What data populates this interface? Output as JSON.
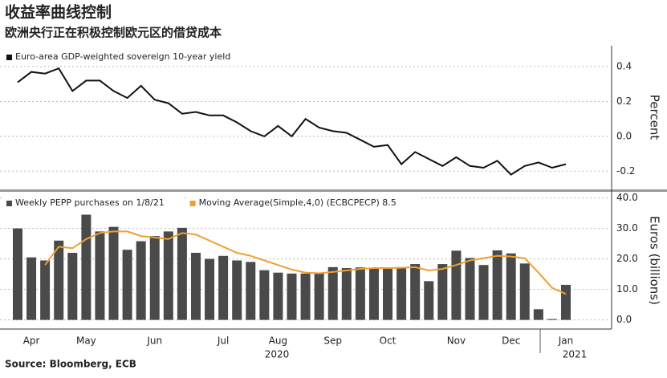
{
  "chart_data": [
    {
      "type": "line",
      "title": "收益率曲线控制",
      "subtitle": "欧洲央行正在积极控制欧元区的借贷成本",
      "ylabel": "Percent",
      "series": [
        {
          "name": "Euro-area GDP-weighted sovereign 10-year yield",
          "color": "#111111",
          "values": [
            0.31,
            0.37,
            0.36,
            0.39,
            0.26,
            0.32,
            0.32,
            0.26,
            0.22,
            0.29,
            0.21,
            0.19,
            0.13,
            0.14,
            0.12,
            0.12,
            0.08,
            0.03,
            0.0,
            0.06,
            0.0,
            0.1,
            0.05,
            0.03,
            0.02,
            -0.02,
            -0.06,
            -0.05,
            -0.16,
            -0.09,
            -0.13,
            -0.17,
            -0.12,
            -0.17,
            -0.18,
            -0.14,
            -0.22,
            -0.17,
            -0.15,
            -0.18,
            -0.16
          ]
        }
      ],
      "ylim": [
        -0.3,
        0.52
      ],
      "yticks": [
        -0.2,
        {
          "value": 0,
          "label": "0.0"
        },
        0.2,
        0.4
      ]
    },
    {
      "type": "bar",
      "ylabel": "Euros (billions)",
      "source": "Source: Bloomberg, ECB",
      "categories": [
        null,
        "Apr",
        null,
        null,
        null,
        "May",
        null,
        null,
        null,
        null,
        "Jun",
        null,
        null,
        null,
        null,
        "Jul",
        null,
        null,
        null,
        "Aug",
        null,
        null,
        null,
        "Sep",
        null,
        null,
        null,
        "Oct",
        null,
        null,
        null,
        null,
        "Nov",
        null,
        null,
        null,
        "Dec",
        null,
        null,
        null,
        "Jan"
      ],
      "years": [
        "2020",
        "2021"
      ],
      "series": [
        {
          "name": "Weekly PEPP purchases on 1/8/21",
          "color": "#4a4a4a",
          "values": [
            30,
            20.5,
            19.5,
            26,
            22,
            34.5,
            29,
            30.5,
            23,
            25.8,
            27.5,
            29,
            30.2,
            22,
            20,
            21,
            19.5,
            19,
            16.3,
            15.5,
            15.2,
            15.2,
            15.5,
            17.3,
            17,
            17.2,
            17,
            16.8,
            17.3,
            18.3,
            12.7,
            18.3,
            22.7,
            20.3,
            18,
            22.8,
            21.8,
            18.5,
            3.5,
            0.3,
            11.5
          ]
        },
        {
          "name": "Moving Average(Simple,4,0) (ECBCPECP) 8.5",
          "color": "#f0a030",
          "values": [
            null,
            null,
            18,
            24,
            23.5,
            26.5,
            28.5,
            29,
            29,
            27.5,
            27,
            26.5,
            28.5,
            28,
            26,
            24,
            22,
            21,
            19.5,
            18,
            16.5,
            15.5,
            15.3,
            15.7,
            16.2,
            16.7,
            17,
            17,
            17.1,
            17.3,
            16.2,
            16.7,
            18,
            19.5,
            20.2,
            21,
            20.8,
            20.2,
            15.5,
            10.5,
            8.5
          ]
        }
      ],
      "ylim": [
        -3,
        42
      ],
      "yticks": [
        {
          "value": 0,
          "label": "0.0"
        },
        {
          "value": 10,
          "label": "10.0"
        },
        {
          "value": 20,
          "label": "20.0"
        },
        {
          "value": 30,
          "label": "30.0"
        },
        {
          "value": 40,
          "label": "40.0"
        }
      ]
    }
  ]
}
